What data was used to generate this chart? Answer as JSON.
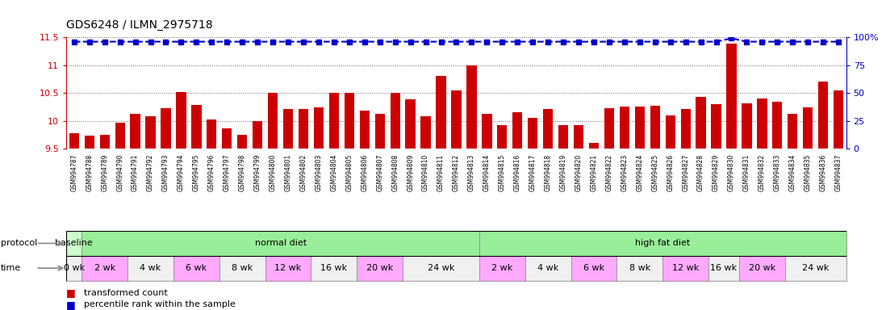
{
  "title": "GDS6248 / ILMN_2975718",
  "samples": [
    "GSM994787",
    "GSM994788",
    "GSM994789",
    "GSM994790",
    "GSM994791",
    "GSM994792",
    "GSM994793",
    "GSM994794",
    "GSM994795",
    "GSM994796",
    "GSM994797",
    "GSM994798",
    "GSM994799",
    "GSM994800",
    "GSM994801",
    "GSM994802",
    "GSM994803",
    "GSM994804",
    "GSM994805",
    "GSM994806",
    "GSM994807",
    "GSM994808",
    "GSM994809",
    "GSM994810",
    "GSM994811",
    "GSM994812",
    "GSM994813",
    "GSM994814",
    "GSM994815",
    "GSM994816",
    "GSM994817",
    "GSM994818",
    "GSM994819",
    "GSM994820",
    "GSM994821",
    "GSM994822",
    "GSM994823",
    "GSM994824",
    "GSM994825",
    "GSM994826",
    "GSM994827",
    "GSM994828",
    "GSM994829",
    "GSM994830",
    "GSM994831",
    "GSM994832",
    "GSM994833",
    "GSM994834",
    "GSM994835",
    "GSM994836",
    "GSM994837"
  ],
  "values": [
    9.78,
    9.73,
    9.75,
    9.97,
    10.12,
    10.09,
    10.23,
    10.52,
    10.28,
    10.03,
    9.86,
    9.75,
    10.0,
    10.5,
    10.22,
    10.22,
    10.24,
    10.5,
    10.5,
    10.18,
    10.12,
    10.5,
    10.38,
    10.09,
    10.8,
    10.55,
    11.0,
    10.13,
    9.92,
    10.15,
    10.05,
    10.21,
    9.93,
    9.93,
    9.61,
    10.23,
    10.26,
    10.25,
    10.27,
    10.1,
    10.22,
    10.43,
    10.3,
    11.38,
    10.32,
    10.4,
    10.35,
    10.13,
    10.24,
    10.7,
    10.55
  ],
  "percentile_values": [
    96,
    96,
    96,
    96,
    96,
    96,
    96,
    96,
    96,
    96,
    96,
    96,
    96,
    96,
    96,
    96,
    96,
    96,
    96,
    96,
    96,
    96,
    96,
    96,
    96,
    96,
    96,
    96,
    96,
    96,
    96,
    96,
    96,
    96,
    96,
    96,
    96,
    96,
    96,
    96,
    96,
    96,
    96,
    99,
    96,
    96,
    96,
    96,
    96,
    96,
    96
  ],
  "ylim": [
    9.5,
    11.5
  ],
  "yticks": [
    9.5,
    10.0,
    10.5,
    11.0,
    11.5
  ],
  "ytick_labels": [
    "9.5",
    "10",
    "10.5",
    "11",
    "11.5"
  ],
  "bar_color": "#cc0000",
  "percentile_color": "#0000cc",
  "protocol_groups": [
    {
      "label": "baseline",
      "color": "#ccffcc",
      "start": 0,
      "end": 1
    },
    {
      "label": "normal diet",
      "color": "#99ee99",
      "start": 1,
      "end": 27
    },
    {
      "label": "high fat diet",
      "color": "#99ee99",
      "start": 27,
      "end": 51
    }
  ],
  "time_groups": [
    {
      "label": "0 wk",
      "color": "#f0f0f0",
      "start": 0,
      "end": 1
    },
    {
      "label": "2 wk",
      "color": "#ffaaff",
      "start": 1,
      "end": 4
    },
    {
      "label": "4 wk",
      "color": "#f0f0f0",
      "start": 4,
      "end": 7
    },
    {
      "label": "6 wk",
      "color": "#ffaaff",
      "start": 7,
      "end": 10
    },
    {
      "label": "8 wk",
      "color": "#f0f0f0",
      "start": 10,
      "end": 13
    },
    {
      "label": "12 wk",
      "color": "#ffaaff",
      "start": 13,
      "end": 16
    },
    {
      "label": "16 wk",
      "color": "#f0f0f0",
      "start": 16,
      "end": 19
    },
    {
      "label": "20 wk",
      "color": "#ffaaff",
      "start": 19,
      "end": 22
    },
    {
      "label": "24 wk",
      "color": "#f0f0f0",
      "start": 22,
      "end": 27
    },
    {
      "label": "2 wk",
      "color": "#ffaaff",
      "start": 27,
      "end": 30
    },
    {
      "label": "4 wk",
      "color": "#f0f0f0",
      "start": 30,
      "end": 33
    },
    {
      "label": "6 wk",
      "color": "#ffaaff",
      "start": 33,
      "end": 36
    },
    {
      "label": "8 wk",
      "color": "#f0f0f0",
      "start": 36,
      "end": 39
    },
    {
      "label": "12 wk",
      "color": "#ffaaff",
      "start": 39,
      "end": 42
    },
    {
      "label": "16 wk",
      "color": "#f0f0f0",
      "start": 42,
      "end": 44
    },
    {
      "label": "20 wk",
      "color": "#ffaaff",
      "start": 44,
      "end": 47
    },
    {
      "label": "24 wk",
      "color": "#f0f0f0",
      "start": 47,
      "end": 51
    }
  ],
  "background_color": "#ffffff",
  "dotted_line_color": "#666666",
  "right_yticks": [
    0,
    25,
    50,
    75,
    100
  ],
  "right_ylim": [
    0,
    100
  ],
  "right_ytick_labels": [
    "0",
    "25",
    "50",
    "75",
    "100%"
  ]
}
